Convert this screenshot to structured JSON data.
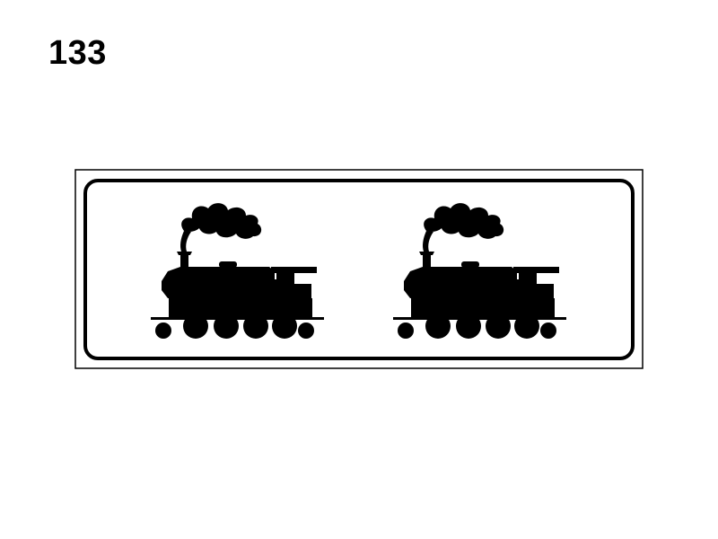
{
  "sign_number": "133",
  "sign": {
    "pictogram": "steam-locomotive-icon",
    "pictogram_count": 2,
    "colors": {
      "background": "#ffffff",
      "border": "#000000",
      "symbol": "#000000"
    }
  }
}
